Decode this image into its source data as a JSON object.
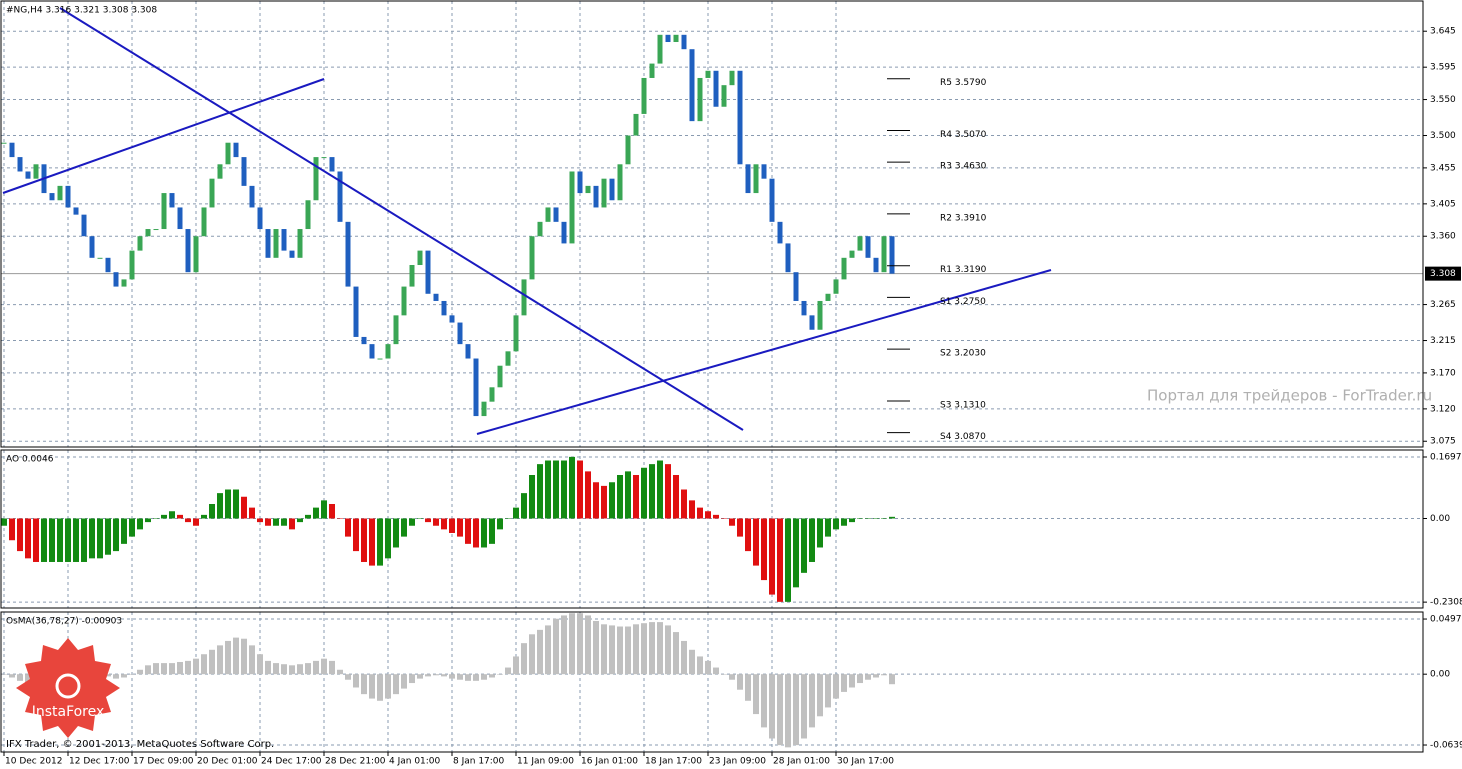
{
  "chart_data": [
    {
      "type": "candlestick",
      "title": "#NG,H4  3.316 3.321 3.308 3.308",
      "categories": [
        "10 Dec 2012",
        null,
        null,
        null,
        null,
        null,
        null,
        null,
        "12 Dec 17:00",
        null,
        null,
        null,
        null,
        null,
        null,
        null,
        "17 Dec 09:00",
        null,
        null,
        null,
        null,
        null,
        null,
        null,
        "20 Dec 01:00",
        null,
        null,
        null,
        null,
        null,
        null,
        null,
        "24 Dec 17:00",
        null,
        null,
        null,
        null,
        null,
        null,
        null,
        "28 Dec 21:00",
        null,
        null,
        null,
        null,
        null,
        null,
        null,
        "4 Jan 01:00",
        null,
        null,
        null,
        null,
        null,
        null,
        null,
        "8 Jan 17:00",
        null,
        null,
        null,
        null,
        null,
        null,
        null,
        "11 Jan 09:00",
        null,
        null,
        null,
        null,
        null,
        null,
        null,
        "16 Jan 01:00",
        null,
        null,
        null,
        null,
        null,
        null,
        null,
        "18 Jan 17:00",
        null,
        null,
        null,
        null,
        null,
        null,
        null,
        "23 Jan 09:00",
        null,
        null,
        null,
        null,
        null,
        null,
        null,
        "28 Jan 01:00",
        null,
        null,
        null,
        null,
        null,
        null,
        null,
        "30 Jan 17:00",
        null,
        null,
        null,
        null,
        null,
        null,
        null
      ],
      "values": [
        3.49,
        3.47,
        3.45,
        3.44,
        3.46,
        3.42,
        3.41,
        3.43,
        3.4,
        3.39,
        3.36,
        3.33,
        3.33,
        3.31,
        3.29,
        3.3,
        3.34,
        3.36,
        3.37,
        3.37,
        3.42,
        3.4,
        3.37,
        3.31,
        3.36,
        3.4,
        3.44,
        3.46,
        3.49,
        3.47,
        3.43,
        3.4,
        3.37,
        3.33,
        3.37,
        3.34,
        3.33,
        3.37,
        3.41,
        3.47,
        3.47,
        3.45,
        3.38,
        3.29,
        3.22,
        3.21,
        3.19,
        3.19,
        3.21,
        3.25,
        3.29,
        3.32,
        3.34,
        3.28,
        3.27,
        3.25,
        3.24,
        3.21,
        3.19,
        3.11,
        3.13,
        3.15,
        3.18,
        3.2,
        3.25,
        3.3,
        3.36,
        3.38,
        3.4,
        3.38,
        3.35,
        3.45,
        3.42,
        3.43,
        3.4,
        3.44,
        3.41,
        3.46,
        3.5,
        3.53,
        3.58,
        3.6,
        3.64,
        3.63,
        3.64,
        3.62,
        3.52,
        3.58,
        3.59,
        3.54,
        3.57,
        3.59,
        3.46,
        3.42,
        3.46,
        3.44,
        3.38,
        3.35,
        3.31,
        3.27,
        3.25,
        3.23,
        3.27,
        3.28,
        3.3,
        3.33,
        3.34,
        3.36,
        3.33,
        3.31,
        3.36,
        3.308
      ],
      "up_color": "#3aa655",
      "down_color": "#1f5fbf",
      "ylim": [
        3.067,
        3.687
      ],
      "yticks": [
        3.645,
        3.595,
        {
          "value": 3.55,
          "label": "3.550"
        },
        {
          "value": 3.5,
          "label": "3.500"
        },
        3.455,
        3.405,
        {
          "value": 3.36,
          "label": "3.360"
        },
        3.265,
        3.215,
        {
          "value": 3.17,
          "label": "3.170"
        },
        {
          "value": 3.12,
          "label": "3.120"
        },
        3.075
      ],
      "current_price": 3.308,
      "pivots": [
        {
          "label": "R5 3.5790",
          "value": 3.579
        },
        {
          "label": "R4 3.5070",
          "value": 3.507
        },
        {
          "label": "R3 3.4630",
          "value": 3.463
        },
        {
          "label": "R2 3.3910",
          "value": 3.391
        },
        {
          "label": "R1 3.3190",
          "value": 3.319
        },
        {
          "label": "S1 3.2750",
          "value": 3.275
        },
        {
          "label": "S2 3.2030",
          "value": 3.203
        },
        {
          "label": "S3 3.1310",
          "value": 3.131
        },
        {
          "label": "S4 3.0870",
          "value": 3.087
        }
      ],
      "watermark": "Портал для трейдеров - ForTrader.ru",
      "grid": true
    },
    {
      "type": "histogram",
      "title": "AO 0.0046",
      "values": [
        -0.02,
        -0.06,
        -0.09,
        -0.11,
        -0.12,
        -0.12,
        -0.12,
        -0.12,
        -0.12,
        -0.12,
        -0.12,
        -0.11,
        -0.11,
        -0.1,
        -0.09,
        -0.07,
        -0.05,
        -0.03,
        -0.01,
        0.0,
        0.01,
        0.02,
        0.01,
        -0.01,
        -0.02,
        0.01,
        0.04,
        0.07,
        0.08,
        0.08,
        0.06,
        0.03,
        -0.01,
        -0.02,
        -0.02,
        -0.02,
        -0.03,
        -0.01,
        0.01,
        0.03,
        0.05,
        0.04,
        0.0,
        -0.05,
        -0.09,
        -0.12,
        -0.13,
        -0.13,
        -0.11,
        -0.08,
        -0.05,
        -0.02,
        0.0,
        -0.01,
        -0.02,
        -0.03,
        -0.04,
        -0.05,
        -0.07,
        -0.08,
        -0.08,
        -0.07,
        -0.03,
        0.0,
        0.03,
        0.07,
        0.12,
        0.15,
        0.16,
        0.16,
        0.16,
        0.17,
        0.16,
        0.13,
        0.1,
        0.09,
        0.1,
        0.12,
        0.13,
        0.12,
        0.14,
        0.15,
        0.16,
        0.15,
        0.12,
        0.08,
        0.05,
        0.03,
        0.02,
        0.01,
        0.0,
        -0.02,
        -0.05,
        -0.09,
        -0.13,
        -0.17,
        -0.21,
        -0.23,
        -0.23,
        -0.19,
        -0.15,
        -0.12,
        -0.08,
        -0.05,
        -0.03,
        -0.02,
        -0.01,
        0.0,
        0.0,
        0.0,
        0.0,
        0.0046
      ],
      "up_color": "#138a13",
      "down_color": "#e01010",
      "ylim": [
        -0.247,
        0.189
      ],
      "yticks": [
        0.1697,
        {
          "value": 0,
          "label": "0.00"
        },
        -0.2308
      ],
      "grid": true
    },
    {
      "type": "histogram",
      "title": "OsMA(36,78,27) -0.00903",
      "values": [
        0.0,
        -0.003,
        -0.006,
        -0.008,
        -0.008,
        -0.007,
        -0.005,
        -0.003,
        -0.001,
        0.002,
        0.003,
        0.002,
        0.0,
        -0.002,
        -0.004,
        -0.003,
        0.0,
        0.004,
        0.008,
        0.01,
        0.01,
        0.01,
        0.011,
        0.012,
        0.014,
        0.018,
        0.022,
        0.026,
        0.03,
        0.033,
        0.032,
        0.026,
        0.018,
        0.012,
        0.01,
        0.009,
        0.008,
        0.009,
        0.01,
        0.012,
        0.014,
        0.012,
        0.004,
        -0.005,
        -0.012,
        -0.018,
        -0.022,
        -0.024,
        -0.022,
        -0.018,
        -0.013,
        -0.008,
        -0.004,
        -0.002,
        -0.001,
        -0.002,
        -0.004,
        -0.005,
        -0.006,
        -0.006,
        -0.005,
        -0.003,
        0.0,
        0.006,
        0.016,
        0.028,
        0.036,
        0.04,
        0.044,
        0.05,
        0.053,
        0.055,
        0.055,
        0.053,
        0.048,
        0.045,
        0.044,
        0.043,
        0.043,
        0.045,
        0.046,
        0.047,
        0.047,
        0.044,
        0.038,
        0.03,
        0.022,
        0.016,
        0.012,
        0.006,
        0.0,
        -0.005,
        -0.014,
        -0.024,
        -0.036,
        -0.048,
        -0.058,
        -0.064,
        -0.066,
        -0.064,
        -0.058,
        -0.048,
        -0.038,
        -0.03,
        -0.022,
        -0.016,
        -0.012,
        -0.008,
        -0.005,
        -0.003,
        -0.001,
        -0.00903
      ],
      "color": "#c0c0c0",
      "ylim": [
        -0.0702,
        0.0561
      ],
      "yticks": [
        0.04975,
        {
          "value": 0,
          "label": "0.00"
        },
        -0.0639
      ],
      "grid": true
    }
  ],
  "logo": "InstaForex",
  "footer": "IFX Trader, © 2001-2013, MetaQuotes Software Corp."
}
